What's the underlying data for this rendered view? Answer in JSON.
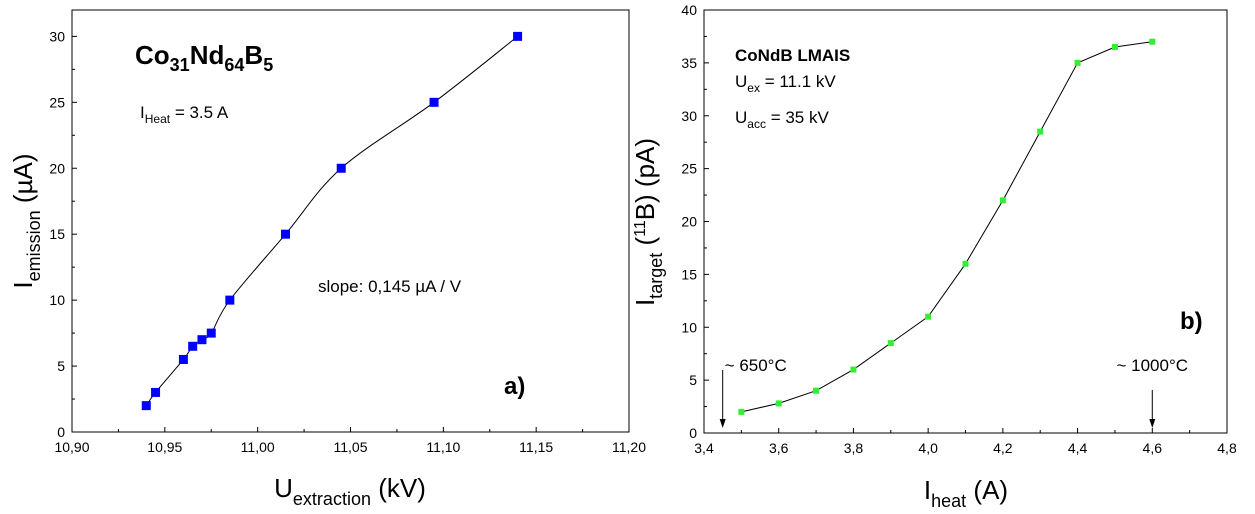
{
  "chart_data": [
    {
      "type": "scatter",
      "panel_label": "a)",
      "title": {
        "base1": "Co",
        "sub1": "31",
        "base2": "Nd",
        "sub2": "64",
        "base3": "B",
        "sub3": "5"
      },
      "heat_label": {
        "base": "I",
        "sub": "Heat",
        "rest": " = 3.5 A"
      },
      "slope_text": "slope: 0,145 µA / V",
      "xlabel": {
        "base": "U",
        "sub": "extraction",
        "rest": " (kV)"
      },
      "ylabel": {
        "base": "I",
        "sub": "emission",
        "rest": " (µA)"
      },
      "xlim": [
        10.9,
        11.2
      ],
      "ylim": [
        0,
        32
      ],
      "xticks": [
        "10,90",
        "10,95",
        "11,00",
        "11,05",
        "11,10",
        "11,15",
        "11,20"
      ],
      "yticks": [
        "0",
        "5",
        "10",
        "15",
        "20",
        "25",
        "30"
      ],
      "grid": false,
      "marker_color": "#0000ff",
      "series": [
        {
          "x": [
            10.94,
            10.945,
            10.96,
            10.965,
            10.97,
            10.975,
            10.985,
            11.015,
            11.045,
            11.095,
            11.14
          ],
          "y": [
            2,
            3,
            5.5,
            6.5,
            7,
            7.5,
            10,
            15,
            20,
            25,
            30
          ]
        }
      ]
    },
    {
      "type": "line",
      "panel_label": "b)",
      "title": "CoNdB LMAIS",
      "uex_label": {
        "base": "U",
        "sub": "ex",
        "rest": " = 11.1 kV"
      },
      "uacc_label": {
        "base": "U",
        "sub": "acc",
        "rest": " = 35 kV"
      },
      "xlabel": {
        "base": "I",
        "sub": "heat",
        "rest": " (A)"
      },
      "ylabel": {
        "base": "I",
        "sub": "target",
        "mid": " (",
        "sup": "11",
        "rest": "B) (pA)"
      },
      "xlim": [
        3.4,
        4.8
      ],
      "ylim": [
        0,
        40
      ],
      "xticks": [
        "3,4",
        "3,6",
        "3,8",
        "4,0",
        "4,2",
        "4,4",
        "4,6",
        "4,8"
      ],
      "yticks": [
        "0",
        "5",
        "10",
        "15",
        "20",
        "25",
        "30",
        "35",
        "40"
      ],
      "grid": false,
      "marker_color": "#33ee33",
      "annotations": [
        {
          "text": "~ 650°C",
          "x": 3.45
        },
        {
          "text": "~ 1000°C",
          "x": 4.6
        }
      ],
      "series": [
        {
          "x": [
            3.5,
            3.6,
            3.7,
            3.8,
            3.9,
            4.0,
            4.1,
            4.2,
            4.3,
            4.4,
            4.5,
            4.6
          ],
          "y": [
            2,
            2.8,
            4,
            6,
            8.5,
            11,
            16,
            22,
            28.5,
            35,
            36.5,
            37
          ]
        }
      ]
    }
  ]
}
